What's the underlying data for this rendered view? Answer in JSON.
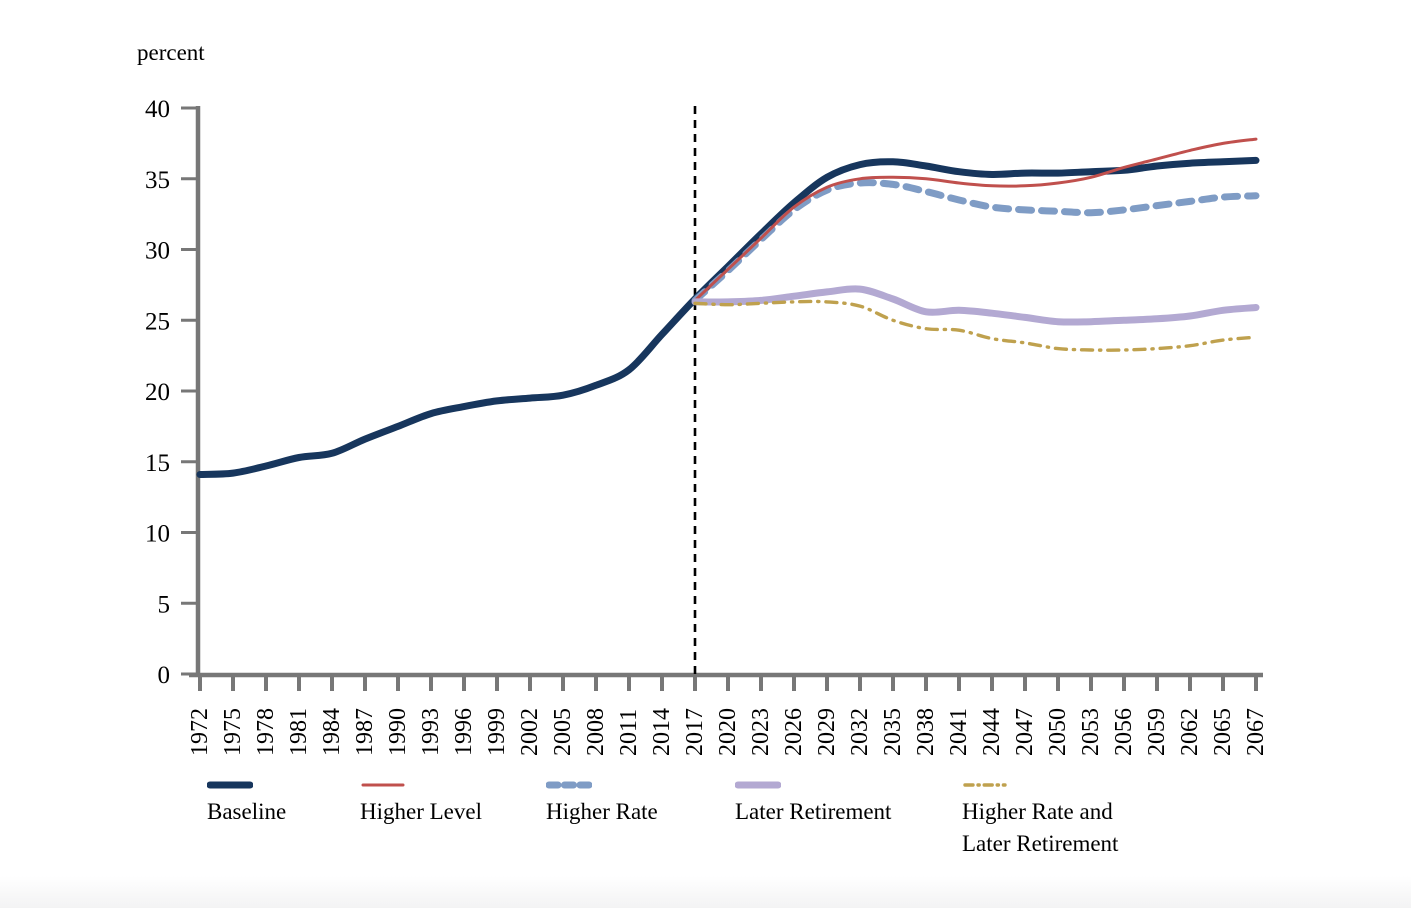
{
  "chart_data": {
    "type": "line",
    "title": "",
    "xlabel": "",
    "ylabel": "percent",
    "ylim": [
      0,
      40
    ],
    "yticks": [
      0,
      5,
      10,
      15,
      20,
      25,
      30,
      35,
      40
    ],
    "xtick_labels": [
      "1972",
      "1975",
      "1978",
      "1981",
      "1984",
      "1987",
      "1990",
      "1993",
      "1996",
      "1999",
      "2002",
      "2005",
      "2008",
      "2011",
      "2014",
      "2017",
      "2020",
      "2023",
      "2026",
      "2029",
      "2032",
      "2035",
      "2038",
      "2041",
      "2044",
      "2047",
      "2050",
      "2053",
      "2056",
      "2059",
      "2062",
      "2065",
      "2067"
    ],
    "grid": "off",
    "legend_position": "bottom",
    "axis_color": "#777777",
    "annotation": {
      "type": "vline",
      "x": 2017,
      "style": "dashed",
      "color": "#000000"
    },
    "series": [
      {
        "name": "Baseline",
        "color": "#17365d",
        "dash": "solid",
        "weight": "thick",
        "x": [
          1972,
          1975,
          1978,
          1981,
          1984,
          1987,
          1990,
          1993,
          1996,
          1999,
          2002,
          2005,
          2008,
          2011,
          2014,
          2017,
          2020,
          2023,
          2026,
          2029,
          2032,
          2035,
          2038,
          2041,
          2044,
          2047,
          2050,
          2053,
          2056,
          2059,
          2062,
          2065,
          2067
        ],
        "values": [
          14.1,
          14.2,
          14.7,
          15.3,
          15.6,
          16.6,
          17.5,
          18.4,
          18.9,
          19.3,
          19.5,
          19.7,
          20.4,
          21.5,
          24.0,
          26.5,
          28.8,
          31.1,
          33.3,
          35.1,
          36.0,
          36.2,
          35.9,
          35.5,
          35.3,
          35.4,
          35.4,
          35.5,
          35.6,
          35.9,
          36.1,
          36.2,
          36.3
        ]
      },
      {
        "name": "Higher Rate",
        "color": "#7f9cc5",
        "dash": "dashed",
        "weight": "thick",
        "x": [
          2017,
          2020,
          2023,
          2026,
          2029,
          2032,
          2035,
          2038,
          2041,
          2044,
          2047,
          2050,
          2053,
          2056,
          2059,
          2062,
          2065,
          2067
        ],
        "values": [
          26.4,
          28.5,
          30.7,
          32.8,
          34.2,
          34.7,
          34.6,
          34.1,
          33.5,
          33.0,
          32.8,
          32.7,
          32.6,
          32.8,
          33.1,
          33.4,
          33.7,
          33.8
        ]
      },
      {
        "name": "Higher Level",
        "color": "#c0504d",
        "dash": "solid",
        "weight": "thin",
        "x": [
          2017,
          2020,
          2023,
          2026,
          2029,
          2032,
          2035,
          2038,
          2041,
          2044,
          2047,
          2050,
          2053,
          2056,
          2059,
          2062,
          2065,
          2067
        ],
        "values": [
          26.4,
          28.6,
          30.8,
          33.0,
          34.4,
          35.0,
          35.1,
          35.0,
          34.7,
          34.5,
          34.5,
          34.7,
          35.1,
          35.8,
          36.4,
          37.0,
          37.5,
          37.8
        ]
      },
      {
        "name": "Later Retirement",
        "color": "#b3a9d2",
        "dash": "solid",
        "weight": "thick",
        "x": [
          2017,
          2020,
          2023,
          2026,
          2029,
          2032,
          2035,
          2038,
          2041,
          2044,
          2047,
          2050,
          2053,
          2056,
          2059,
          2062,
          2065,
          2067
        ],
        "values": [
          26.3,
          26.3,
          26.4,
          26.7,
          27.0,
          27.2,
          26.5,
          25.6,
          25.7,
          25.5,
          25.2,
          24.9,
          24.9,
          25.0,
          25.1,
          25.3,
          25.7,
          25.9
        ]
      },
      {
        "name": "Higher Rate and Later Retirement",
        "color": "#bfa14e",
        "dash": "dashdot",
        "weight": "thin",
        "x": [
          2017,
          2020,
          2023,
          2026,
          2029,
          2032,
          2035,
          2038,
          2041,
          2044,
          2047,
          2050,
          2053,
          2056,
          2059,
          2062,
          2065,
          2067
        ],
        "values": [
          26.2,
          26.1,
          26.2,
          26.3,
          26.3,
          26.0,
          25.0,
          24.4,
          24.3,
          23.7,
          23.4,
          23.0,
          22.9,
          22.9,
          23.0,
          23.2,
          23.6,
          23.8
        ]
      }
    ]
  },
  "legend": {
    "items": [
      {
        "label": "Baseline",
        "series": "Baseline"
      },
      {
        "label": "Higher Level",
        "series": "Higher Level"
      },
      {
        "label": "Higher Rate",
        "series": "Higher Rate"
      },
      {
        "label": "Later Retirement",
        "series": "Later Retirement"
      },
      {
        "label": "Higher Rate and\nLater Retirement",
        "series": "Higher Rate and Later Retirement"
      }
    ]
  }
}
